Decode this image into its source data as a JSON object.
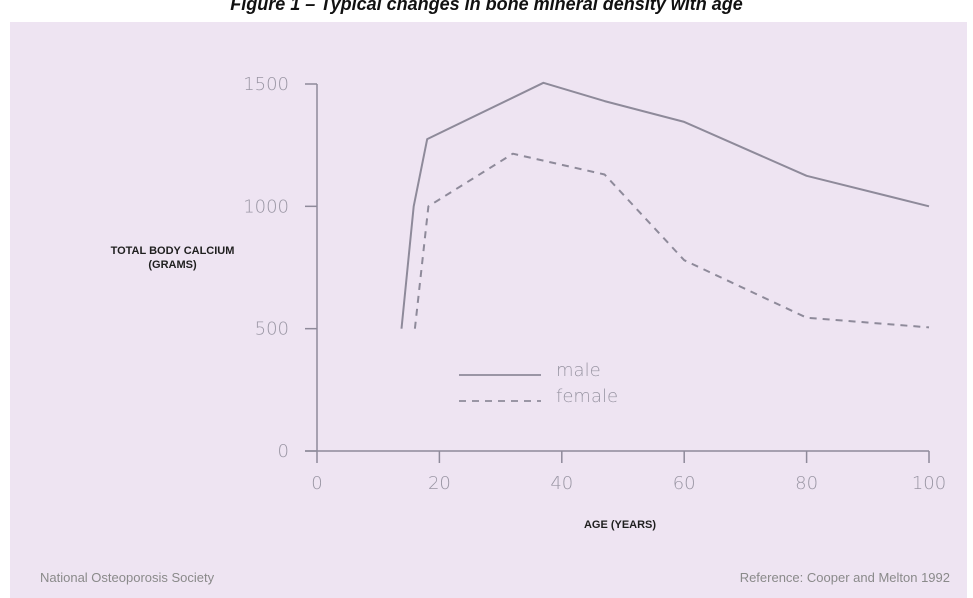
{
  "figure": {
    "title": "Figure 1 – Typical changes in bone mineral density with age",
    "source_left": "National Osteoporosis Society",
    "source_right": "Reference: Cooper and Melton 1992"
  },
  "chart_data": {
    "type": "line",
    "title": "Figure 1 – Typical changes in bone mineral density with age",
    "xlabel": "AGE (YEARS)",
    "ylabel": [
      "TOTAL BODY CALCIUM",
      "(GRAMS)"
    ],
    "xlim": [
      0,
      100
    ],
    "ylim": [
      0,
      1500
    ],
    "xticks": [
      0,
      20,
      40,
      60,
      80,
      100
    ],
    "yticks": [
      0,
      500,
      1000,
      1500
    ],
    "grid": false,
    "legend_position": "center-left",
    "series": [
      {
        "name": "male",
        "style": "solid",
        "color": "#8e8a9a",
        "x": [
          13.8,
          15.8,
          18,
          37,
          47,
          60,
          80,
          100
        ],
        "y": [
          500,
          1000,
          1275,
          1505,
          1430,
          1345,
          1125,
          1000
        ]
      },
      {
        "name": "female",
        "style": "dashed",
        "color": "#8e8a9a",
        "x": [
          16,
          18.2,
          32,
          47,
          60,
          80,
          100
        ],
        "y": [
          500,
          1000,
          1215,
          1130,
          780,
          545,
          505
        ]
      }
    ]
  }
}
